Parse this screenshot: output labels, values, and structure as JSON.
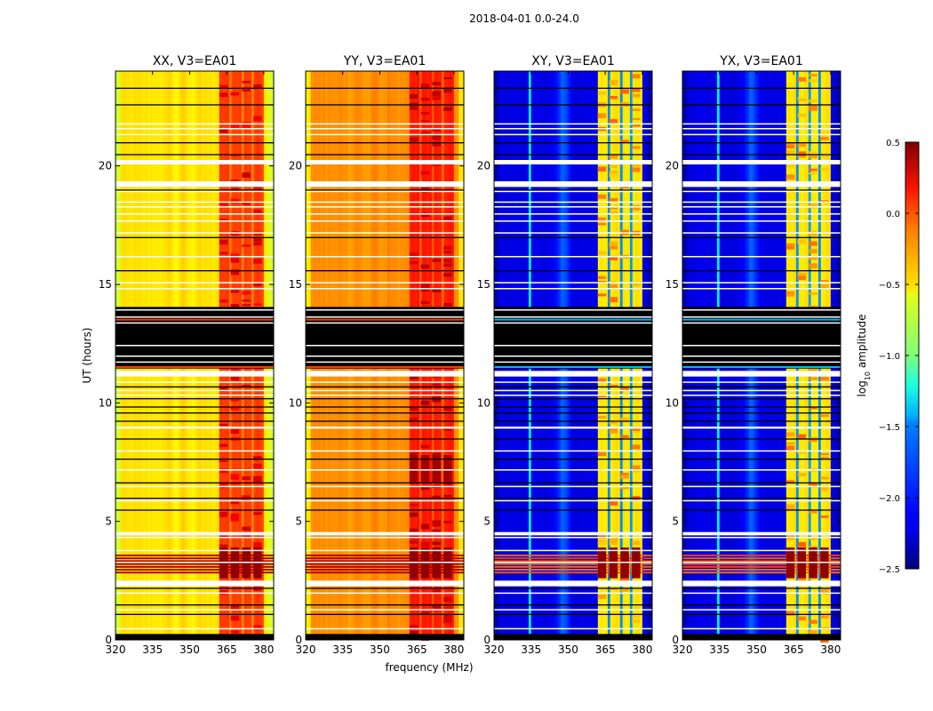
{
  "figure": {
    "suptitle": "2018-04-01 0.0-24.0"
  },
  "chart_data": {
    "type": "heatmap",
    "title": "2018-04-01 0.0-24.0",
    "xlabel": "frequency (MHz)",
    "ylabel": "UT (hours)",
    "xlim": [
      320,
      384
    ],
    "ylim": [
      0,
      24
    ],
    "xticks": [
      320,
      335,
      350,
      365,
      380
    ],
    "xtick_labels": [
      "320",
      "335",
      "350",
      "365",
      "380"
    ],
    "yticks": [
      0,
      5,
      10,
      15,
      20
    ],
    "ytick_labels": [
      "0",
      "5",
      "10",
      "15",
      "20"
    ],
    "colormap": "jet",
    "colorbar": {
      "label": "log10 amplitude",
      "label_main": "log",
      "label_sub": "10",
      "label_rest": " amplitude",
      "range": [
        -2.5,
        0.5
      ],
      "ticks": [
        0.5,
        0.0,
        -0.5,
        -1.0,
        -1.5,
        -2.0,
        -2.5
      ],
      "tick_labels": [
        "0.5",
        "0.0",
        "−0.5",
        "−1.0",
        "−1.5",
        "−2.0",
        "−2.5"
      ],
      "placement": "right"
    },
    "panels": [
      {
        "title": "XX, V3=EA01",
        "polarization": "XX",
        "baseline_level": -0.55,
        "band_level": -0.05,
        "edge_level": -0.75,
        "description": "mostly yellow (~-0.5) with orange/red RFI band 362-380 MHz"
      },
      {
        "title": "YY, V3=EA01",
        "polarization": "YY",
        "baseline_level": -0.3,
        "band_level": 0.05,
        "edge_level": -0.55,
        "description": "mostly orange (~-0.3) with red band 362-380 MHz, dark red blocks near UT 6.5-7.8 and 2.8-4.3"
      },
      {
        "title": "XY, V3=EA01",
        "polarization": "XY",
        "baseline_level": -2.2,
        "band_level": -0.7,
        "edge_level": -2.35,
        "description": "mostly blue (~-2.2) with light-blue ridge near 348 MHz and green/yellow stripes 362-380 MHz"
      },
      {
        "title": "YX, V3=EA01",
        "polarization": "YX",
        "baseline_level": -2.2,
        "band_level": -0.7,
        "edge_level": -2.35,
        "description": "similar to XY"
      }
    ],
    "flagged_black_ranges_hours": [
      [
        11.45,
        14.05
      ],
      [
        0.0,
        0.25
      ]
    ],
    "bright_event_hours": [
      2.8,
      3.6
    ],
    "gap_white_hours": [
      19.3,
      19.15,
      20.2,
      11.3,
      4.5,
      2.45
    ]
  }
}
